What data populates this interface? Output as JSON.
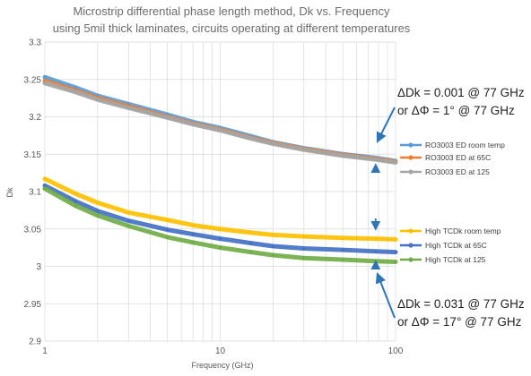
{
  "chart_data": {
    "type": "line",
    "title_lines": [
      "Microstrip differential phase length method, Dk vs. Frequency",
      "using 5mil thick laminates, circuits operating at different temperatures"
    ],
    "xlabel": "Frequency (GHz)",
    "ylabel": "Dk",
    "x_scale": "log",
    "xlim": [
      1,
      100
    ],
    "ylim": [
      2.9,
      3.3
    ],
    "x_ticks": [
      1,
      10,
      100
    ],
    "x_tick_labels": [
      "1",
      "10",
      "100"
    ],
    "y_ticks": [
      2.9,
      2.95,
      3.0,
      3.05,
      3.1,
      3.15,
      3.2,
      3.25,
      3.3
    ],
    "y_tick_labels": [
      "2.9",
      "2.95",
      "3",
      "3.05",
      "3.1",
      "3.15",
      "3.2",
      "3.25",
      "3.3"
    ],
    "grid": true,
    "legend_position": "right",
    "x": [
      1,
      1.5,
      2,
      3,
      5,
      7,
      10,
      15,
      20,
      30,
      50,
      77,
      100
    ],
    "series": [
      {
        "name": "RO3003 ED room temp",
        "color": "#5b9bd5",
        "values": [
          3.253,
          3.239,
          3.228,
          3.217,
          3.203,
          3.193,
          3.185,
          3.174,
          3.166,
          3.158,
          3.15,
          3.145,
          3.141
        ],
        "group": 1
      },
      {
        "name": "RO3003 ED at 65C",
        "color": "#ed7d31",
        "values": [
          3.248,
          3.235,
          3.225,
          3.214,
          3.2,
          3.191,
          3.183,
          3.172,
          3.165,
          3.157,
          3.149,
          3.144,
          3.14
        ],
        "group": 1
      },
      {
        "name": "RO3003 ED at 125",
        "color": "#a5a5a5",
        "values": [
          3.245,
          3.233,
          3.223,
          3.212,
          3.199,
          3.19,
          3.182,
          3.171,
          3.164,
          3.156,
          3.148,
          3.143,
          3.139
        ],
        "group": 1
      },
      {
        "name": "High TCDk room temp",
        "color": "#ffc000",
        "values": [
          3.117,
          3.097,
          3.085,
          3.072,
          3.062,
          3.055,
          3.05,
          3.045,
          3.042,
          3.04,
          3.038,
          3.037,
          3.036
        ],
        "group": 2
      },
      {
        "name": "High TCDk at 65C",
        "color": "#4472c4",
        "values": [
          3.108,
          3.087,
          3.074,
          3.061,
          3.049,
          3.043,
          3.037,
          3.031,
          3.027,
          3.024,
          3.022,
          3.02,
          3.019
        ],
        "group": 2
      },
      {
        "name": "High TCDk at 125",
        "color": "#70ad47",
        "values": [
          3.104,
          3.081,
          3.068,
          3.054,
          3.039,
          3.032,
          3.025,
          3.019,
          3.015,
          3.011,
          3.009,
          3.007,
          3.006
        ],
        "group": 2
      }
    ],
    "annotations": [
      {
        "lines": [
          "ΔDk = 0.001 @ 77 GHz",
          "or ΔΦ = 1° @ 77 GHz"
        ],
        "position": "upper-right",
        "points_to": {
          "x": 77,
          "y": 3.145
        }
      },
      {
        "lines": [
          "ΔDk = 0.031 @ 77 GHz",
          "or ΔΦ = 17° @ 77 GHz"
        ],
        "position": "lower-right",
        "points_to": {
          "x": 77,
          "y": 3.02
        }
      }
    ]
  }
}
